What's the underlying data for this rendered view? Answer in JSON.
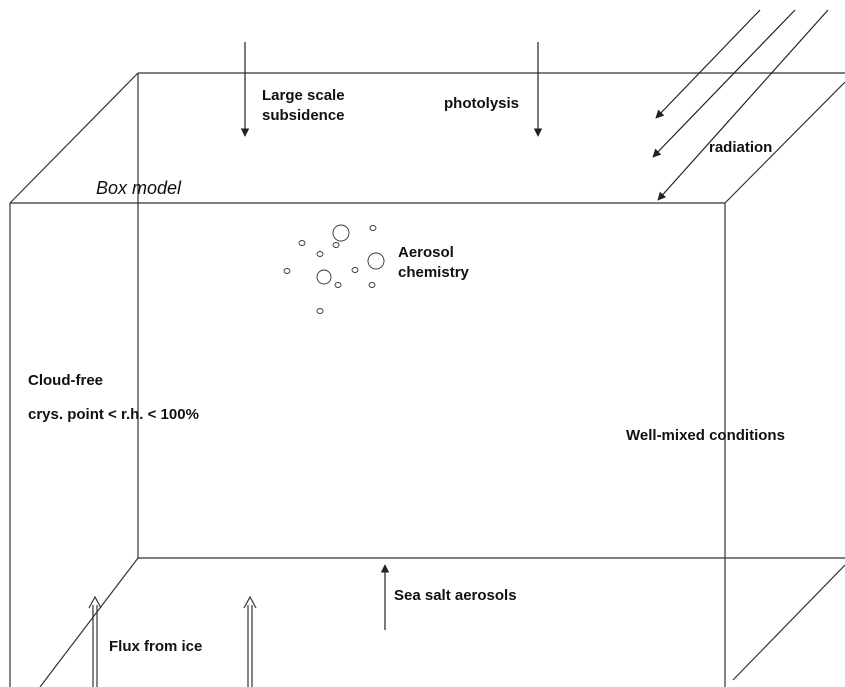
{
  "diagram": {
    "box_label": "Box model",
    "subsidence": [
      "Large scale",
      "subsidence"
    ],
    "photolysis": "photolysis",
    "radiation": "radiation",
    "aerosol": [
      "Aerosol",
      "chemistry"
    ],
    "cloud_free": "Cloud-free",
    "humidity": "crys. point < r.h. < 100%",
    "mixing": "Well-mixed conditions",
    "sea_salt": "Sea salt aerosols",
    "flux": "Flux from ice"
  }
}
